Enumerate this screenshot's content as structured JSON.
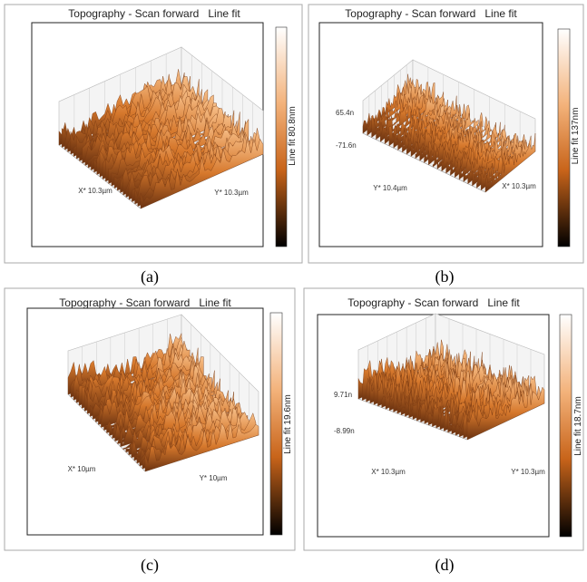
{
  "panels": [
    {
      "title": "Topography - Scan forward   Line fit",
      "colorbar_label": "Line fit 80.8nm",
      "axis_labels": [
        "X* 10.3µm",
        "Y* 10.3µm"
      ],
      "z_labels": [],
      "caption": "(a)"
    },
    {
      "title": "Topography - Scan forward   Line fit",
      "colorbar_label": "Line fit 137nm",
      "axis_labels": [
        "Y* 10.4µm",
        "X* 10.3µm"
      ],
      "z_labels": [
        "65.4n",
        "-71.6n"
      ],
      "caption": "(b)"
    },
    {
      "title": "Topography - Scan forward   Line fit",
      "colorbar_label": "Line fit 19.6nm",
      "axis_labels": [
        "X* 10µm",
        "Y* 10µm"
      ],
      "z_labels": [],
      "caption": "(c)"
    },
    {
      "title": "Topography - Scan forward   Line fit",
      "colorbar_label": "Line fit 18.7nm",
      "axis_labels": [
        "X* 10.3µm",
        "Y* 10.3µm"
      ],
      "z_labels": [
        "9.71n",
        "-8.99n"
      ],
      "caption": "(d)"
    }
  ]
}
